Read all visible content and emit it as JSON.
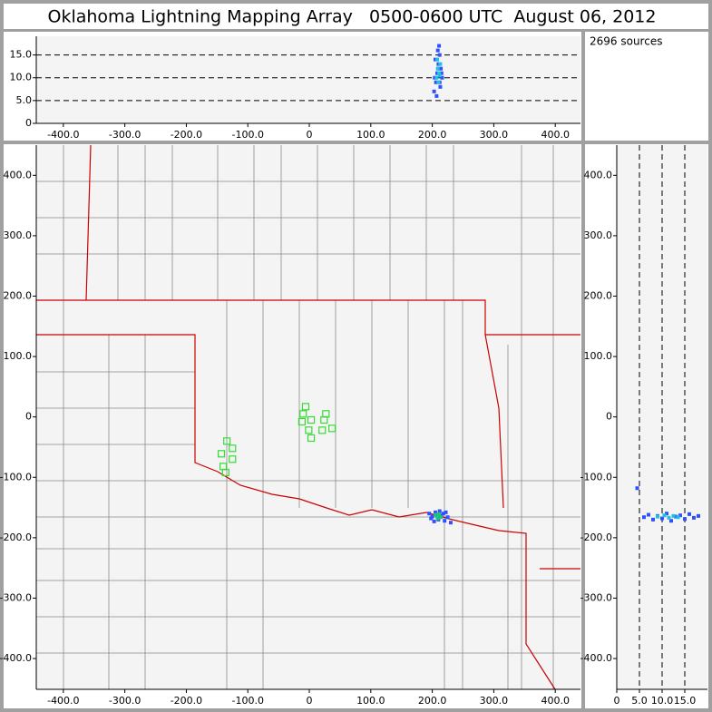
{
  "title": "Oklahoma Lightning Mapping Array   0500-0600 UTC  August 06, 2012",
  "source_count": "2696 sources",
  "chart_data": [
    {
      "type": "scatter",
      "xlim": [
        -444,
        441
      ],
      "ylim": [
        0,
        19.1
      ],
      "dashed_grid": "y",
      "xticks": [
        {
          "value": -400,
          "label": "-400.0"
        },
        {
          "value": -300,
          "label": "-300.0"
        },
        {
          "value": -200,
          "label": "-200.0"
        },
        {
          "value": -100,
          "label": "-100.0"
        },
        0,
        {
          "value": 100,
          "label": "100.0"
        },
        {
          "value": 200,
          "label": "200.0"
        },
        {
          "value": 300,
          "label": "300.0"
        },
        {
          "value": 400,
          "label": "400.0"
        }
      ],
      "yticks": [
        0,
        {
          "value": 5,
          "label": "5.0"
        },
        {
          "value": 10,
          "label": "10.0"
        },
        {
          "value": 15,
          "label": "15.0"
        }
      ],
      "series": [
        {
          "color": "#3050ff",
          "marker": "dot",
          "x": [
            203,
            206,
            208,
            210,
            212,
            214,
            216,
            205,
            209,
            213,
            207,
            211,
            215,
            204,
            210,
            212
          ],
          "values": [
            7,
            9,
            11,
            13,
            15,
            12,
            10,
            14,
            16,
            8,
            6,
            17,
            11,
            10,
            12,
            9
          ]
        },
        {
          "color": "#20c0e0",
          "marker": "dot",
          "x": [
            207,
            209,
            211,
            213,
            208,
            210,
            212
          ],
          "values": [
            10,
            12,
            11,
            13,
            14,
            9,
            10.5
          ]
        }
      ]
    },
    {
      "type": "scatter",
      "xlim": [
        -444,
        441
      ],
      "ylim": [
        -451,
        450
      ],
      "map": true,
      "xticks": [
        {
          "value": -400,
          "label": "-400.0"
        },
        {
          "value": -300,
          "label": "-300.0"
        },
        {
          "value": -200,
          "label": "-200.0"
        },
        {
          "value": -100,
          "label": "-100.0"
        },
        0,
        {
          "value": 100,
          "label": "100.0"
        },
        {
          "value": 200,
          "label": "200.0"
        },
        {
          "value": 300,
          "label": "300.0"
        },
        {
          "value": 400,
          "label": "400.0"
        }
      ],
      "yticks": [
        {
          "value": 400,
          "label": "400.0"
        },
        {
          "value": 300,
          "label": "300.0"
        },
        {
          "value": 200,
          "label": "200.0"
        },
        {
          "value": 100,
          "label": "100.0"
        },
        0,
        {
          "value": -100,
          "label": "-100.0"
        },
        {
          "value": -200,
          "label": "-200.0"
        },
        {
          "value": -300,
          "label": "-300.0"
        },
        {
          "value": -400,
          "label": "-400.0"
        }
      ],
      "series": [
        {
          "color": "#33dd33",
          "marker": "square",
          "x": [
            -6,
            -10,
            3,
            -12,
            27,
            24,
            37,
            -1,
            21,
            3,
            -134,
            -125,
            -143,
            -125,
            -140,
            -136
          ],
          "values": [
            17,
            5,
            -5,
            -8,
            5,
            -5,
            -19,
            -22,
            -22,
            -35,
            -40,
            -52,
            -61,
            -70,
            -82,
            -92
          ]
        },
        {
          "color": "#3050ff",
          "marker": "dot",
          "x": [
            195,
            200,
            205,
            210,
            215,
            220,
            225,
            230,
            198,
            212,
            218,
            203,
            222
          ],
          "values": [
            -160,
            -165,
            -158,
            -170,
            -163,
            -172,
            -166,
            -175,
            -168,
            -156,
            -160,
            -173,
            -158
          ]
        },
        {
          "color": "#20c080",
          "marker": "dot",
          "x": [
            205,
            208,
            211,
            214,
            209
          ],
          "values": [
            -162,
            -165,
            -161,
            -166,
            -168
          ]
        }
      ]
    },
    {
      "type": "scatter",
      "xlim": [
        0,
        20
      ],
      "ylim": [
        -451,
        450
      ],
      "dashed_grid": "x",
      "xticks": [
        0,
        {
          "value": 5,
          "label": "5.0"
        },
        {
          "value": 10,
          "label": "10.0"
        },
        {
          "value": 15,
          "label": "15.0"
        }
      ],
      "yticks": [
        {
          "value": 400,
          "label": "400.0"
        },
        {
          "value": 300,
          "label": "300.0"
        },
        {
          "value": 200,
          "label": "200.0"
        },
        {
          "value": 100,
          "label": "100.0"
        },
        0,
        {
          "value": -100,
          "label": "-100.0"
        },
        {
          "value": -200,
          "label": "-200.0"
        },
        {
          "value": -300,
          "label": "-300.0"
        },
        {
          "value": -400,
          "label": "-400.0"
        }
      ],
      "series": [
        {
          "color": "#3050ff",
          "marker": "dot",
          "x": [
            6,
            7,
            8,
            9,
            10,
            11,
            12,
            13,
            14,
            15,
            16,
            17,
            18,
            4.5
          ],
          "values": [
            -166,
            -162,
            -170,
            -164,
            -168,
            -160,
            -172,
            -165,
            -163,
            -169,
            -161,
            -167,
            -164,
            -118
          ]
        },
        {
          "color": "#20c0e0",
          "marker": "dot",
          "x": [
            9,
            10.5,
            11.5,
            12.5,
            13.5
          ],
          "values": [
            -165,
            -163,
            -167,
            -164,
            -166
          ]
        }
      ]
    }
  ]
}
